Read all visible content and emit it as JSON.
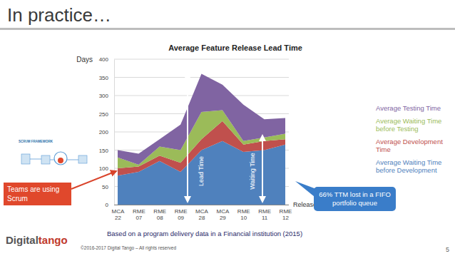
{
  "slide": {
    "title": "In practice…",
    "source_note": "Based on a program delivery data in a Financial institution (2015)",
    "copyright": "©2016-2017 Digital Tango – All rights reserved",
    "page_number": "5",
    "logo": [
      "Digital",
      "tango"
    ],
    "scrum_image_label": "SCRUM FRAMEWORK"
  },
  "chart_data": {
    "type": "area",
    "stacked": true,
    "title": "Average Feature Release Lead Time",
    "y_label": "Days",
    "x_label": "Release",
    "categories": [
      "MCA 22",
      "RME 07",
      "RME 08",
      "RME 09",
      "MCA 28",
      "MCA 29",
      "RME 10",
      "RME 11",
      "RME 12"
    ],
    "series": [
      {
        "name": "Average Waiting Time before Development",
        "color": "#4f81bd",
        "values": [
          80,
          90,
          120,
          90,
          150,
          175,
          145,
          150,
          165
        ]
      },
      {
        "name": "Average Development Time",
        "color": "#c0504d",
        "values": [
          20,
          15,
          15,
          25,
          30,
          55,
          20,
          25,
          15
        ]
      },
      {
        "name": "Average Waiting Time before Testing",
        "color": "#9bbb59",
        "values": [
          30,
          5,
          25,
          35,
          75,
          30,
          10,
          10,
          15
        ]
      },
      {
        "name": "Average Testing Time",
        "color": "#8064a2",
        "values": [
          20,
          30,
          20,
          70,
          105,
          70,
          100,
          50,
          43
        ]
      }
    ],
    "ylim": [
      0,
      400
    ],
    "yticks": [
      0,
      50,
      100,
      150,
      200,
      250,
      300,
      350,
      400
    ],
    "grid": true,
    "annotations": {
      "scrum_callout": "Teams are using Scrum",
      "queue_callout": "66% TTM lost in a FIFO portfolio queue",
      "lead_time": "Lead Time",
      "waiting_time": "Waiting Time"
    }
  }
}
